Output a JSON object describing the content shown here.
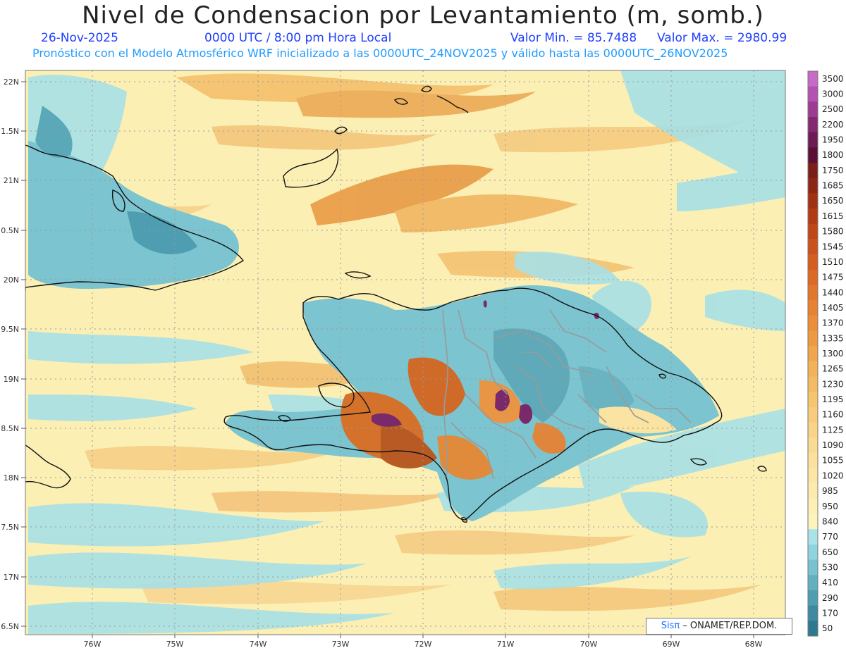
{
  "title": "Nivel de Condensacion por Levantamiento (m, somb.)",
  "date": "26-Nov-2025",
  "time": "0000 UTC / 8:00 pm Hora Local",
  "valmin": "Valor Min. = 85.7488",
  "valmax": "Valor Max. = 2980.99",
  "forecast": "Pronóstico con el Modelo Atmosférico WRF inicializado a las 0000UTC_24NOV2025 y válido hasta las  0000UTC_26NOV2025",
  "credit": {
    "sis": "Sisπ",
    "rest": " – ONAMET/REP.DOM."
  },
  "lat_labels": [
    "22N",
    "1.5N",
    "21N",
    "0.5N",
    "20N",
    "9.5N",
    "19N",
    "8.5N",
    "18N",
    "7.5N",
    "17N",
    "6.5N"
  ],
  "lon_labels": [
    "76W",
    "75W",
    "74W",
    "73W",
    "72W",
    "71W",
    "70W",
    "69W",
    "68W"
  ],
  "colorbar": [
    {
      "label": "3500",
      "color": "#c66bc6"
    },
    {
      "label": "3000",
      "color": "#b452b4"
    },
    {
      "label": "2500",
      "color": "#9c3a94"
    },
    {
      "label": "2200",
      "color": "#84286f"
    },
    {
      "label": "1950",
      "color": "#6e1a54"
    },
    {
      "label": "1800",
      "color": "#5a1036"
    },
    {
      "label": "1750",
      "color": "#7a1f18"
    },
    {
      "label": "1685",
      "color": "#8e2614"
    },
    {
      "label": "1650",
      "color": "#a23112"
    },
    {
      "label": "1615",
      "color": "#b23b14"
    },
    {
      "label": "1580",
      "color": "#c04618"
    },
    {
      "label": "1545",
      "color": "#cb521c"
    },
    {
      "label": "1510",
      "color": "#d45e20"
    },
    {
      "label": "1475",
      "color": "#dc6a26"
    },
    {
      "label": "1440",
      "color": "#e2762c"
    },
    {
      "label": "1405",
      "color": "#e78232"
    },
    {
      "label": "1370",
      "color": "#eb8e3a"
    },
    {
      "label": "1335",
      "color": "#ee9a43"
    },
    {
      "label": "1300",
      "color": "#f1a64d"
    },
    {
      "label": "1265",
      "color": "#f3b158"
    },
    {
      "label": "1230",
      "color": "#f5bb64"
    },
    {
      "label": "1195",
      "color": "#f7c470"
    },
    {
      "label": "1160",
      "color": "#f8cc7c"
    },
    {
      "label": "1125",
      "color": "#f9d488"
    },
    {
      "label": "1090",
      "color": "#fadb93"
    },
    {
      "label": "1055",
      "color": "#fbe19d"
    },
    {
      "label": "1020",
      "color": "#fce6a6"
    },
    {
      "label": "985",
      "color": "#fcebaf"
    },
    {
      "label": "950",
      "color": "#fdefb6"
    },
    {
      "label": "840",
      "color": "#fdf3bc"
    },
    {
      "label": "770",
      "color": "#a8e3ea"
    },
    {
      "label": "650",
      "color": "#8fd3de"
    },
    {
      "label": "530",
      "color": "#78c2d0"
    },
    {
      "label": "410",
      "color": "#62b0c0"
    },
    {
      "label": "290",
      "color": "#4e9db0"
    },
    {
      "label": "170",
      "color": "#3d8aa0"
    },
    {
      "label": "50",
      "color": "#2e7890"
    }
  ],
  "palette": {
    "land_blue": "#7cc4cf",
    "sea_yellow": "#fbefb4",
    "orange": "#e79a48",
    "dark_orange": "#c9662a",
    "purple": "#7a2a6a",
    "coast": "#111111",
    "border": "#9a9a9a"
  }
}
